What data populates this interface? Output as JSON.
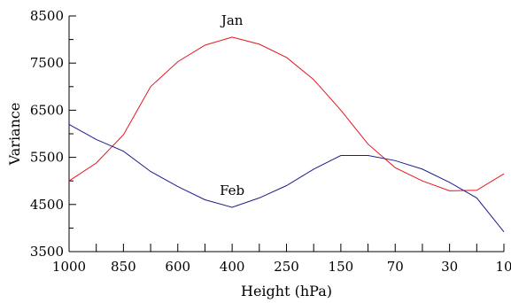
{
  "chart_data": {
    "type": "line",
    "title": "",
    "xlabel": "Height (hPa)",
    "ylabel": "Variance",
    "x_ticks": [
      "1000",
      "850",
      "600",
      "400",
      "250",
      "150",
      "70",
      "30",
      "10"
    ],
    "y_ticks": [
      "3500",
      "4500",
      "5500",
      "6500",
      "7500",
      "8500"
    ],
    "ylim": [
      3500,
      8500
    ],
    "grid": false,
    "legend": "none",
    "x_positions": [
      0,
      0.5,
      1,
      1.5,
      2,
      2.5,
      3,
      3.5,
      4,
      4.5,
      5,
      5.5,
      6,
      6.5,
      7,
      7.5,
      8
    ],
    "series": [
      {
        "name": "Jan",
        "color": "#e8141c",
        "values": [
          5000,
          5380,
          5980,
          7000,
          7530,
          7880,
          8050,
          7900,
          7620,
          7150,
          6500,
          5780,
          5280,
          5000,
          4790,
          4800,
          5150
        ]
      },
      {
        "name": "Feb",
        "color": "#1c1c8c",
        "values": [
          6200,
          5880,
          5630,
          5200,
          4880,
          4600,
          4440,
          4640,
          4900,
          5250,
          5540,
          5540,
          5430,
          5250,
          4970,
          4640,
          3920
        ]
      }
    ],
    "annotations": [
      {
        "text": "Jan",
        "series": "Jan",
        "at_x": 3,
        "offset": "above"
      },
      {
        "text": "Feb",
        "series": "Feb",
        "at_x": 3,
        "offset": "above"
      }
    ]
  }
}
